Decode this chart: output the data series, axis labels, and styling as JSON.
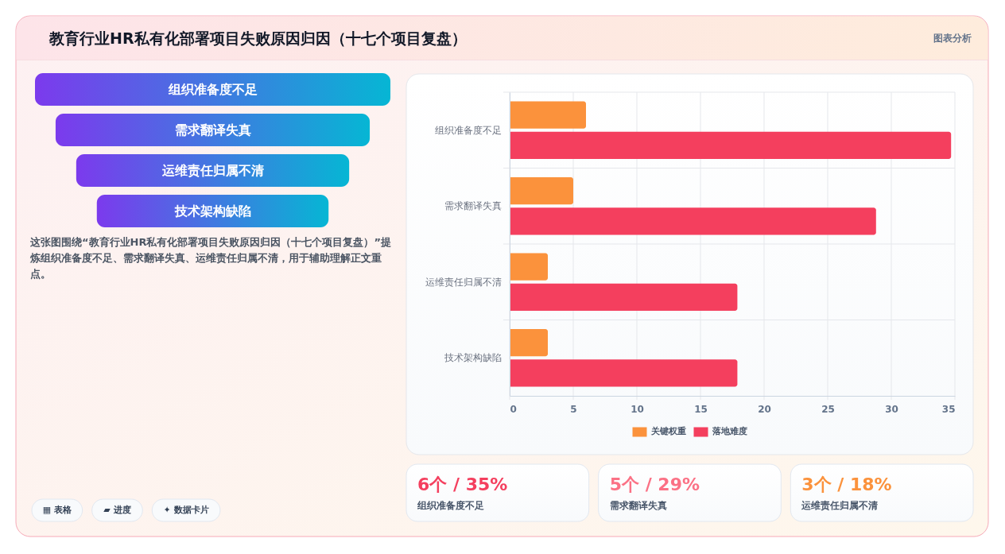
{
  "chart_data": [
    {
      "type": "other",
      "title": "教育行业HR私有化部署项目失败原因归因（十七个项目复盘）",
      "categories": [
        "组织准备度不足",
        "需求翻译失真",
        "运维责任归属不清",
        "技术架构缺陷"
      ],
      "annotations": [
        "图表分析",
        "这张图围绕“教育行业HR私有化部署项目失败原因归因（十七个项目复盘）”提炼组织准备度不足、需求翻译失真、运维责任归属不清，用于辅助理解正文重点。",
        "▦ 表格",
        "▰ 进度",
        "✦ 数据卡片"
      ]
    },
    {
      "type": "bar",
      "orientation": "horizontal",
      "categories": [
        "组织准备度不足",
        "需求翻译失真",
        "运维责任归属不清",
        "技术架构缺陷"
      ],
      "series": [
        {
          "name": "关键权重",
          "color": "#fb923c",
          "values": [
            6,
            5,
            3,
            3
          ]
        },
        {
          "name": "落地难度",
          "color": "#f43f5e",
          "values": [
            34.7,
            28.8,
            17.9,
            17.9
          ]
        }
      ],
      "xlim": [
        0,
        35
      ],
      "xticks": [
        0,
        5,
        10,
        15,
        20,
        25,
        30,
        35
      ],
      "grid": true,
      "legend": "bottom"
    },
    {
      "type": "other",
      "categories": [
        "组织准备度不足",
        "需求翻译失真",
        "运维责任归属不清"
      ],
      "annotations": [
        "6个 / 35%",
        "5个 / 29%",
        "3个 / 18%"
      ]
    }
  ]
}
